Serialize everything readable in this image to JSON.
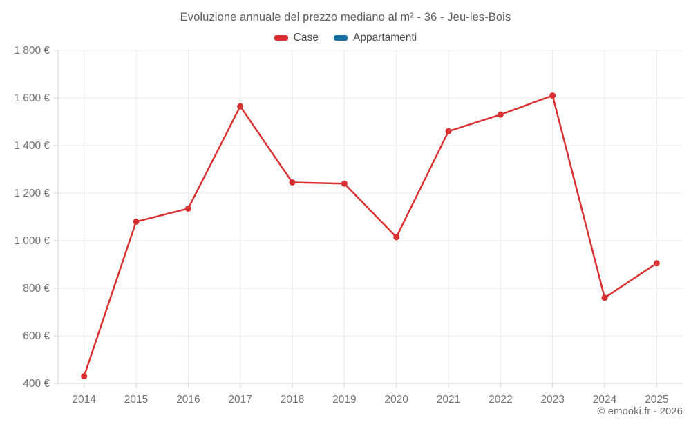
{
  "title": "Evoluzione annuale del prezzo mediano al m² - 36 - Jeu-les-Bois",
  "legend": {
    "items": [
      {
        "label": "Case",
        "color": "#d93032"
      },
      {
        "label": "Appartamenti",
        "color": "#1571a5"
      }
    ]
  },
  "footer": {
    "copyright": "© emooki.fr - 2026"
  },
  "chart_data": {
    "type": "line",
    "title": "Evoluzione annuale del prezzo mediano al m² - 36 - Jeu-les-Bois",
    "xlabel": "",
    "ylabel": "",
    "categories": [
      "2014",
      "2015",
      "2016",
      "2017",
      "2018",
      "2019",
      "2020",
      "2021",
      "2022",
      "2023",
      "2024",
      "2025"
    ],
    "series": [
      {
        "name": "Case",
        "color": "#d93032",
        "values": [
          430,
          1080,
          1135,
          1565,
          1245,
          1240,
          1015,
          1460,
          1530,
          1610,
          760,
          905
        ]
      },
      {
        "name": "Appartamenti",
        "color": "#1571a5",
        "values": []
      }
    ],
    "ylim": [
      400,
      1800
    ],
    "yticks": [
      {
        "value": 400,
        "label": "400 €"
      },
      {
        "value": 600,
        "label": "600 €"
      },
      {
        "value": 800,
        "label": "800 €"
      },
      {
        "value": 1000,
        "label": "1 000 €"
      },
      {
        "value": 1200,
        "label": "1 200 €"
      },
      {
        "value": 1400,
        "label": "1 400 €"
      },
      {
        "value": 1600,
        "label": "1 600 €"
      },
      {
        "value": 1800,
        "label": "1 800 €"
      }
    ],
    "grid": true,
    "legend_position": "top"
  }
}
